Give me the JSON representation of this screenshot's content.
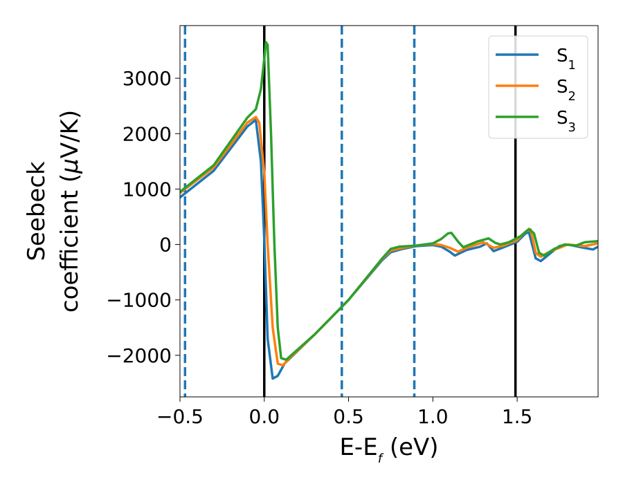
{
  "chart_data": {
    "type": "line",
    "title": "",
    "xlabel": {
      "main": "E-E",
      "sub": "f",
      "tail": " (eV)"
    },
    "ylabel": {
      "line1": "Seebeck",
      "line2_a": "coefficient  (",
      "mu": "μ",
      "line2_b": "V/K)"
    },
    "xlim": [
      -0.5,
      1.98
    ],
    "ylim": [
      -2750,
      3950
    ],
    "xticks": [
      -0.5,
      0.0,
      0.5,
      1.0,
      1.5
    ],
    "xtick_labels": [
      "−0.5",
      "0.0",
      "0.5",
      "1.0",
      "1.5"
    ],
    "yticks": [
      -2000,
      -1000,
      0,
      1000,
      2000,
      3000
    ],
    "ytick_labels": [
      "−2000",
      "−1000",
      "0",
      "1000",
      "2000",
      "3000"
    ],
    "grid": false,
    "legend_position": "top-right",
    "vertical_lines": [
      {
        "x": 0.0,
        "style": "solid",
        "color": "#000000"
      },
      {
        "x": 1.49,
        "style": "solid",
        "color": "#000000"
      },
      {
        "x": -0.47,
        "style": "dashed",
        "color": "#1f77b4"
      },
      {
        "x": 0.46,
        "style": "dashed",
        "color": "#1f77b4"
      },
      {
        "x": 0.89,
        "style": "dashed",
        "color": "#1f77b4"
      }
    ],
    "series": [
      {
        "name": "S",
        "sub": "1",
        "color": "#1f77b4",
        "points": [
          [
            -0.5,
            850
          ],
          [
            -0.3,
            1330
          ],
          [
            -0.1,
            2130
          ],
          [
            -0.05,
            2250
          ],
          [
            -0.02,
            1500
          ],
          [
            0.0,
            100
          ],
          [
            0.02,
            -1700
          ],
          [
            0.05,
            -2420
          ],
          [
            0.08,
            -2370
          ],
          [
            0.12,
            -2150
          ],
          [
            0.3,
            -1620
          ],
          [
            0.5,
            -1000
          ],
          [
            0.7,
            -280
          ],
          [
            0.75,
            -140
          ],
          [
            0.82,
            -80
          ],
          [
            0.9,
            -30
          ],
          [
            1.0,
            -10
          ],
          [
            1.05,
            -40
          ],
          [
            1.1,
            -130
          ],
          [
            1.13,
            -200
          ],
          [
            1.2,
            -100
          ],
          [
            1.28,
            -40
          ],
          [
            1.32,
            20
          ],
          [
            1.36,
            -120
          ],
          [
            1.42,
            -50
          ],
          [
            1.5,
            50
          ],
          [
            1.55,
            200
          ],
          [
            1.57,
            220
          ],
          [
            1.61,
            -250
          ],
          [
            1.64,
            -300
          ],
          [
            1.7,
            -150
          ],
          [
            1.75,
            -30
          ],
          [
            1.8,
            0
          ],
          [
            1.88,
            -50
          ],
          [
            1.95,
            -90
          ],
          [
            1.98,
            -40
          ]
        ]
      },
      {
        "name": "S",
        "sub": "2",
        "color": "#ff7f0e",
        "points": [
          [
            -0.5,
            930
          ],
          [
            -0.3,
            1390
          ],
          [
            -0.1,
            2200
          ],
          [
            -0.05,
            2300
          ],
          [
            -0.03,
            2200
          ],
          [
            0.0,
            1300
          ],
          [
            0.02,
            0
          ],
          [
            0.05,
            -1500
          ],
          [
            0.08,
            -2150
          ],
          [
            0.11,
            -2180
          ],
          [
            0.15,
            -2050
          ],
          [
            0.3,
            -1620
          ],
          [
            0.5,
            -1000
          ],
          [
            0.7,
            -260
          ],
          [
            0.75,
            -110
          ],
          [
            0.82,
            -60
          ],
          [
            0.9,
            -20
          ],
          [
            1.0,
            10
          ],
          [
            1.05,
            -10
          ],
          [
            1.1,
            -60
          ],
          [
            1.15,
            -130
          ],
          [
            1.2,
            -60
          ],
          [
            1.3,
            40
          ],
          [
            1.36,
            -60
          ],
          [
            1.42,
            -20
          ],
          [
            1.5,
            80
          ],
          [
            1.55,
            230
          ],
          [
            1.58,
            270
          ],
          [
            1.61,
            -150
          ],
          [
            1.64,
            -220
          ],
          [
            1.7,
            -120
          ],
          [
            1.8,
            0
          ],
          [
            1.9,
            -30
          ],
          [
            1.98,
            20
          ]
        ]
      },
      {
        "name": "S",
        "sub": "3",
        "color": "#2ca02c",
        "points": [
          [
            -0.5,
            950
          ],
          [
            -0.3,
            1430
          ],
          [
            -0.1,
            2290
          ],
          [
            -0.05,
            2440
          ],
          [
            -0.02,
            2800
          ],
          [
            0.0,
            3350
          ],
          [
            0.01,
            3650
          ],
          [
            0.02,
            3600
          ],
          [
            0.04,
            2000
          ],
          [
            0.06,
            0
          ],
          [
            0.08,
            -1500
          ],
          [
            0.1,
            -2050
          ],
          [
            0.13,
            -2080
          ],
          [
            0.3,
            -1620
          ],
          [
            0.5,
            -1000
          ],
          [
            0.7,
            -250
          ],
          [
            0.75,
            -80
          ],
          [
            0.8,
            -40
          ],
          [
            0.9,
            -20
          ],
          [
            1.0,
            20
          ],
          [
            1.05,
            100
          ],
          [
            1.09,
            200
          ],
          [
            1.11,
            210
          ],
          [
            1.15,
            50
          ],
          [
            1.18,
            -50
          ],
          [
            1.22,
            0
          ],
          [
            1.27,
            60
          ],
          [
            1.33,
            110
          ],
          [
            1.37,
            30
          ],
          [
            1.4,
            0
          ],
          [
            1.45,
            40
          ],
          [
            1.52,
            150
          ],
          [
            1.57,
            280
          ],
          [
            1.6,
            200
          ],
          [
            1.63,
            -150
          ],
          [
            1.66,
            -200
          ],
          [
            1.72,
            -80
          ],
          [
            1.78,
            0
          ],
          [
            1.85,
            -20
          ],
          [
            1.9,
            40
          ],
          [
            1.98,
            60
          ]
        ]
      }
    ]
  }
}
